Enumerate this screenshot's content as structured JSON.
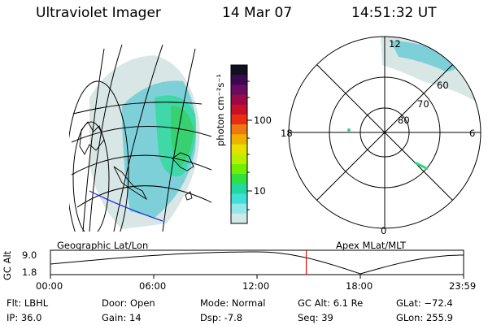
{
  "header": {
    "instrument": "Ultraviolet Imager",
    "date": "14 Mar 07",
    "time": "14:51:32 UT"
  },
  "colorbar": {
    "label": "photon cm⁻²s⁻¹",
    "ticks": [
      "100",
      "10"
    ],
    "colors": [
      "#101020",
      "#3a0a50",
      "#6a0a60",
      "#9a0a48",
      "#c81028",
      "#e83010",
      "#f07810",
      "#f0b000",
      "#e8e000",
      "#b8f000",
      "#70f000",
      "#30e040",
      "#20d8a0",
      "#40e0d8",
      "#90e8e8",
      "#d0e8e8"
    ]
  },
  "polar": {
    "mlt_labels": {
      "top": "12",
      "left": "18",
      "right": "6",
      "bottom": "0"
    },
    "lat_labels": [
      "60",
      "70",
      "80"
    ]
  },
  "panel_labels": {
    "geographic": "Geographic Lat/Lon",
    "apex": "Apex MLat/MLT"
  },
  "altitude_plot": {
    "ylabel": "GC Alt",
    "ytick_top": "9.0",
    "ytick_bottom": "1.8",
    "xticks": [
      "00:00",
      "06:00",
      "12:00",
      "18:00",
      "23:59"
    ],
    "cursor_time_hours": 14.86,
    "curve": {
      "max_at_hours": 12.0,
      "min_at_hours": 18.0
    }
  },
  "info": {
    "flt": "Flt: LBHL",
    "ip": "IP: 36.0",
    "door": "Door: Open",
    "gain": "Gain: 14",
    "mode": "Mode: Normal",
    "dsp": "Dsp:   -7.8",
    "gcalt": "GC Alt: 6.1 Re",
    "seq": "Seq: 39",
    "glat": "GLat: −72.4",
    "glon": "GLon: 255.9"
  }
}
